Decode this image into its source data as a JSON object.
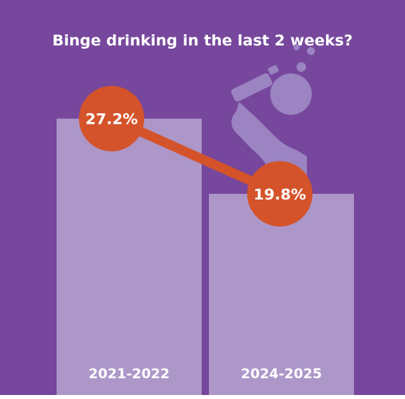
{
  "colors": {
    "background": "#76479c",
    "bar": "#ad97c9",
    "marker": "#d4532a",
    "label": "#ffffff",
    "icon": "#9b84c1"
  },
  "chart_data": {
    "type": "bar",
    "title": "Binge drinking in the last 2 weeks?",
    "categories": [
      "2021-2022",
      "2024-2025"
    ],
    "values": [
      27.2,
      19.8
    ],
    "data_labels": [
      "27.2%",
      "19.8%"
    ],
    "unit": "%",
    "ylim": [
      0,
      30
    ],
    "grid": false,
    "legend": "none",
    "overlay": "line connecting bar-top values with circular markers",
    "icon": "person-drinking-bottle-icon"
  }
}
